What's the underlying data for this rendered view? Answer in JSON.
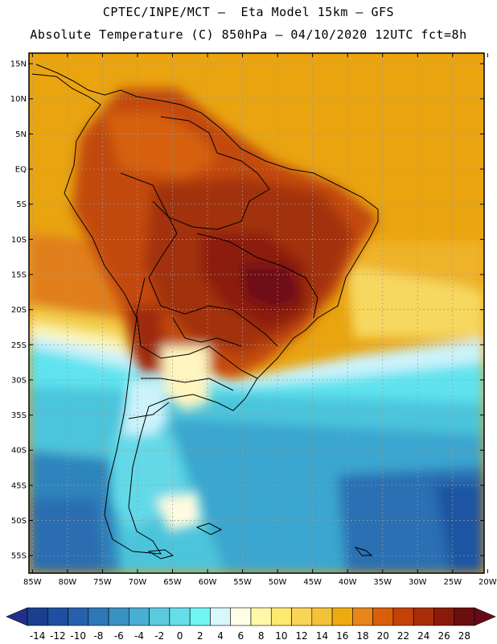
{
  "header": {
    "line1": "CPTEC/INPE/MCT –  Eta Model 15km – GFS",
    "line2": "Absolute Temperature (C) 850hPa – 04/10/2020 12UTC fct=8h"
  },
  "map": {
    "lat_labels": [
      "15N",
      "10N",
      "5N",
      "EQ",
      "5S",
      "10S",
      "15S",
      "20S",
      "25S",
      "30S",
      "35S",
      "40S",
      "45S",
      "50S",
      "55S"
    ],
    "lat_values": [
      15,
      10,
      5,
      0,
      -5,
      -10,
      -15,
      -20,
      -25,
      -30,
      -35,
      -40,
      -45,
      -50,
      -55
    ],
    "lon_labels": [
      "85W",
      "80W",
      "75W",
      "70W",
      "65W",
      "60W",
      "55W",
      "50W",
      "45W",
      "40W",
      "35W",
      "30W",
      "25W",
      "20W"
    ],
    "lon_values": [
      -85,
      -80,
      -75,
      -70,
      -65,
      -60,
      -55,
      -50,
      -45,
      -40,
      -35,
      -30,
      -25,
      -20
    ],
    "lon_range": [
      -85.5,
      -20.5
    ],
    "lat_range": [
      -57.5,
      16.5
    ]
  },
  "colorbar": {
    "labels": [
      "-14",
      "-12",
      "-10",
      "-8",
      "-6",
      "-4",
      "-2",
      "0",
      "2",
      "4",
      "6",
      "8",
      "10",
      "12",
      "14",
      "16",
      "18",
      "20",
      "22",
      "24",
      "26",
      "28"
    ],
    "colors": [
      "#1a3f8f",
      "#1f4fa0",
      "#2760ac",
      "#2f78b8",
      "#3a91c4",
      "#48aed3",
      "#5cc9df",
      "#66dde8",
      "#70f4f4",
      "#d8f7fb",
      "#fffde6",
      "#fff8a8",
      "#fde870",
      "#f8d458",
      "#f3c23a",
      "#efaa10",
      "#e8851a",
      "#d85e0a",
      "#c24208",
      "#a82e08",
      "#8a1a0a",
      "#6a0e0e"
    ],
    "under_color": "#20308a",
    "over_color": "#6a0a18"
  }
}
